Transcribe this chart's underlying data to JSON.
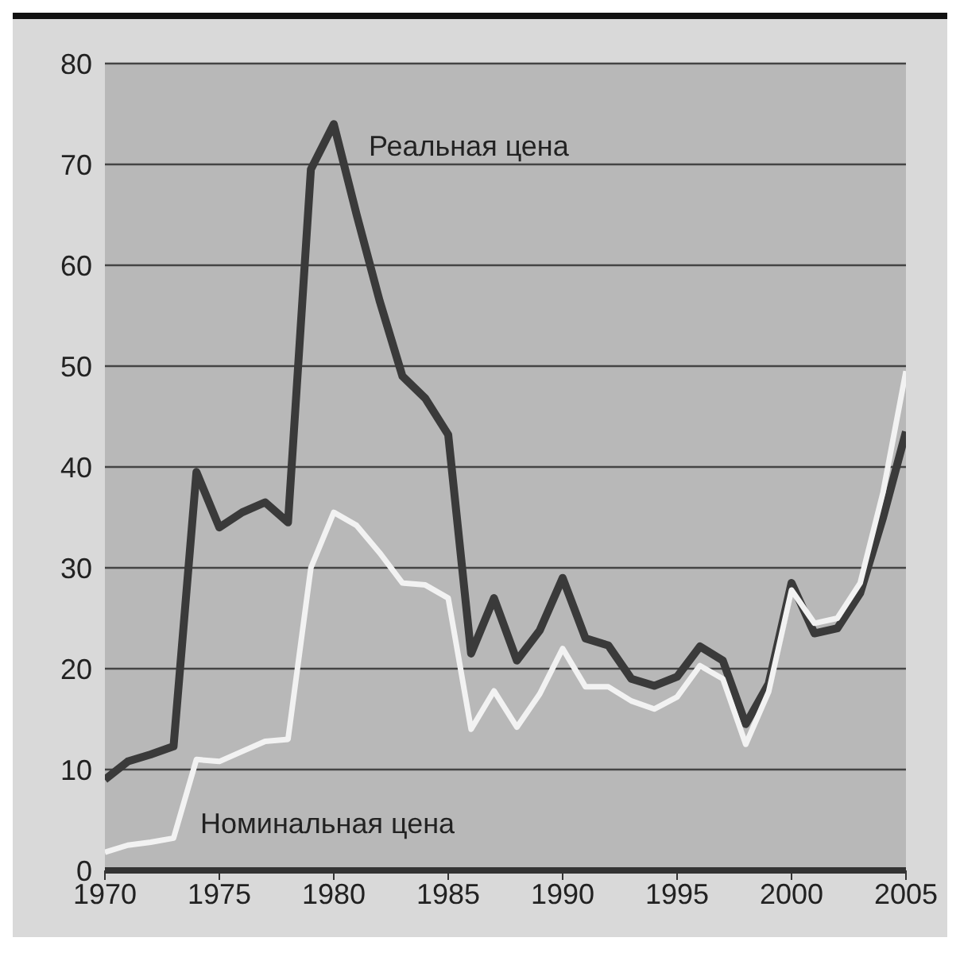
{
  "chart_data": {
    "type": "line",
    "x": [
      1970,
      1971,
      1972,
      1973,
      1974,
      1975,
      1976,
      1977,
      1978,
      1979,
      1980,
      1981,
      1982,
      1983,
      1984,
      1985,
      1986,
      1987,
      1988,
      1989,
      1990,
      1991,
      1992,
      1993,
      1994,
      1995,
      1996,
      1997,
      1998,
      1999,
      2000,
      2001,
      2002,
      2003,
      2004,
      2005
    ],
    "series": [
      {
        "name": "Реальная цена",
        "color": "#3a3a3a",
        "values": [
          9,
          10.8,
          11.5,
          12.3,
          39.5,
          34,
          35.5,
          36.5,
          34.5,
          69.5,
          74,
          65,
          56.5,
          49,
          46.8,
          43.2,
          21.5,
          27,
          20.8,
          23.8,
          29,
          23,
          22.3,
          19,
          18.3,
          19.2,
          22.2,
          20.8,
          14.5,
          18.5,
          28.5,
          23.5,
          24,
          27.5,
          35,
          43.5
        ]
      },
      {
        "name": "Номинальная цена",
        "color": "#f2f2f2",
        "values": [
          1.8,
          2.5,
          2.8,
          3.2,
          11,
          10.8,
          11.8,
          12.8,
          13,
          30,
          35.5,
          34.2,
          31.5,
          28.5,
          28.3,
          27,
          14,
          17.8,
          14.2,
          17.5,
          22,
          18.2,
          18.2,
          16.8,
          16,
          17.2,
          20.3,
          19,
          12.5,
          17.7,
          27.8,
          24.5,
          25,
          28.5,
          37.5,
          49.5
        ]
      }
    ],
    "xlim": [
      1970,
      2005
    ],
    "xticks": [
      1970,
      1975,
      1980,
      1985,
      1990,
      1995,
      2000,
      2005
    ],
    "ylim": [
      0,
      80
    ],
    "yticks": [
      0,
      10,
      20,
      30,
      40,
      50,
      60,
      70,
      80
    ],
    "grid": "y",
    "legend": false,
    "marker": "none",
    "line_style": "solid"
  }
}
